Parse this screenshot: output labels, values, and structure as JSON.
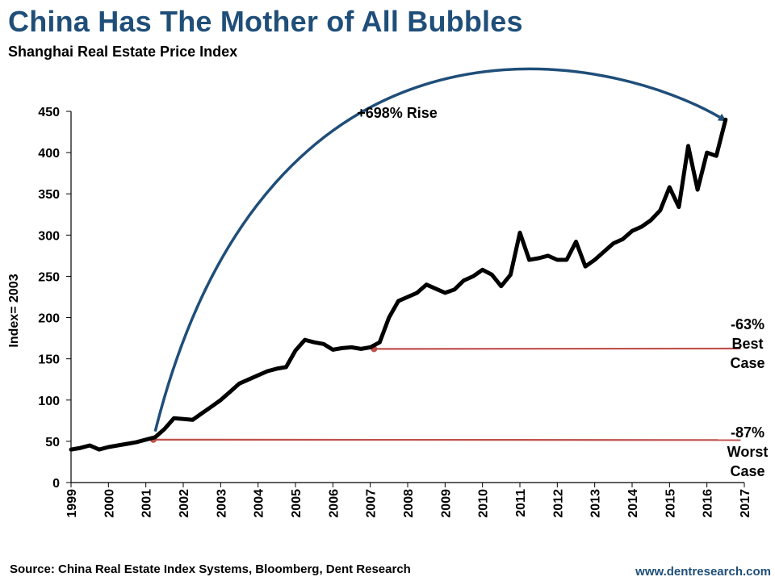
{
  "header": {
    "title": "China Has The Mother of All Bubbles",
    "subtitle": "Shanghai Real Estate Price Index"
  },
  "footer": {
    "source": "Source: China Real Estate Index Systems, Bloomberg, Dent Research",
    "website": "www.dentresearch.com"
  },
  "colors": {
    "series": "#000000",
    "arrow": "#1f4e79",
    "reference": "#c0504d",
    "title": "#1f4e79"
  },
  "chart_data": {
    "type": "line",
    "title": "Shanghai Real Estate Price Index",
    "ylabel": "Index= 2003",
    "xlabel": "",
    "xlim": [
      1999,
      2017
    ],
    "ylim": [
      0,
      450
    ],
    "xticks": [
      "1999",
      "2000",
      "2001",
      "2002",
      "2003",
      "2004",
      "2005",
      "2006",
      "2007",
      "2008",
      "2009",
      "2010",
      "2011",
      "2012",
      "2013",
      "2014",
      "2015",
      "2016",
      "2017"
    ],
    "yticks": [
      "0",
      "50",
      "100",
      "150",
      "200",
      "250",
      "300",
      "350",
      "400",
      "450"
    ],
    "grid": false,
    "legend": "none",
    "series": [
      {
        "x": [
          1999.0,
          1999.25,
          1999.5,
          1999.75,
          2000.0,
          2000.25,
          2000.5,
          2000.75,
          2001.0,
          2001.25,
          2001.5,
          2001.75,
          2002.0,
          2002.25,
          2002.5,
          2002.75,
          2003.0,
          2003.25,
          2003.5,
          2003.75,
          2004.0,
          2004.25,
          2004.5,
          2004.75,
          2005.0,
          2005.25,
          2005.5,
          2005.75,
          2006.0,
          2006.25,
          2006.5,
          2006.75,
          2007.0,
          2007.25,
          2007.5,
          2007.75,
          2008.0,
          2008.25,
          2008.5,
          2008.75,
          2009.0,
          2009.25,
          2009.5,
          2009.75,
          2010.0,
          2010.25,
          2010.5,
          2010.75,
          2011.0,
          2011.25,
          2011.5,
          2011.75,
          2012.0,
          2012.25,
          2012.5,
          2012.75,
          2013.0,
          2013.25,
          2013.5,
          2013.75,
          2014.0,
          2014.25,
          2014.5,
          2014.75,
          2015.0,
          2015.25,
          2015.5,
          2015.75,
          2016.0,
          2016.25,
          2016.5
        ],
        "values": [
          40,
          42,
          45,
          40,
          43,
          45,
          47,
          49,
          52,
          55,
          65,
          78,
          77,
          76,
          84,
          92,
          100,
          110,
          120,
          125,
          130,
          135,
          138,
          140,
          160,
          173,
          170,
          168,
          161,
          163,
          164,
          162,
          164,
          170,
          200,
          220,
          225,
          230,
          240,
          235,
          230,
          234,
          245,
          250,
          258,
          252,
          238,
          252,
          303,
          270,
          272,
          275,
          270,
          270,
          292,
          262,
          270,
          280,
          290,
          295,
          305,
          310,
          318,
          330,
          358,
          334,
          408,
          355,
          400,
          396,
          440
        ]
      }
    ],
    "annotations": [
      {
        "text": "+698% Rise"
      },
      {
        "lines": [
          "-63%",
          "Best",
          "Case"
        ],
        "value": 162,
        "from_x": 2007.1
      },
      {
        "lines": [
          "-87%",
          "Worst",
          "Case"
        ],
        "value": 52,
        "from_x": 2001.2
      }
    ]
  }
}
